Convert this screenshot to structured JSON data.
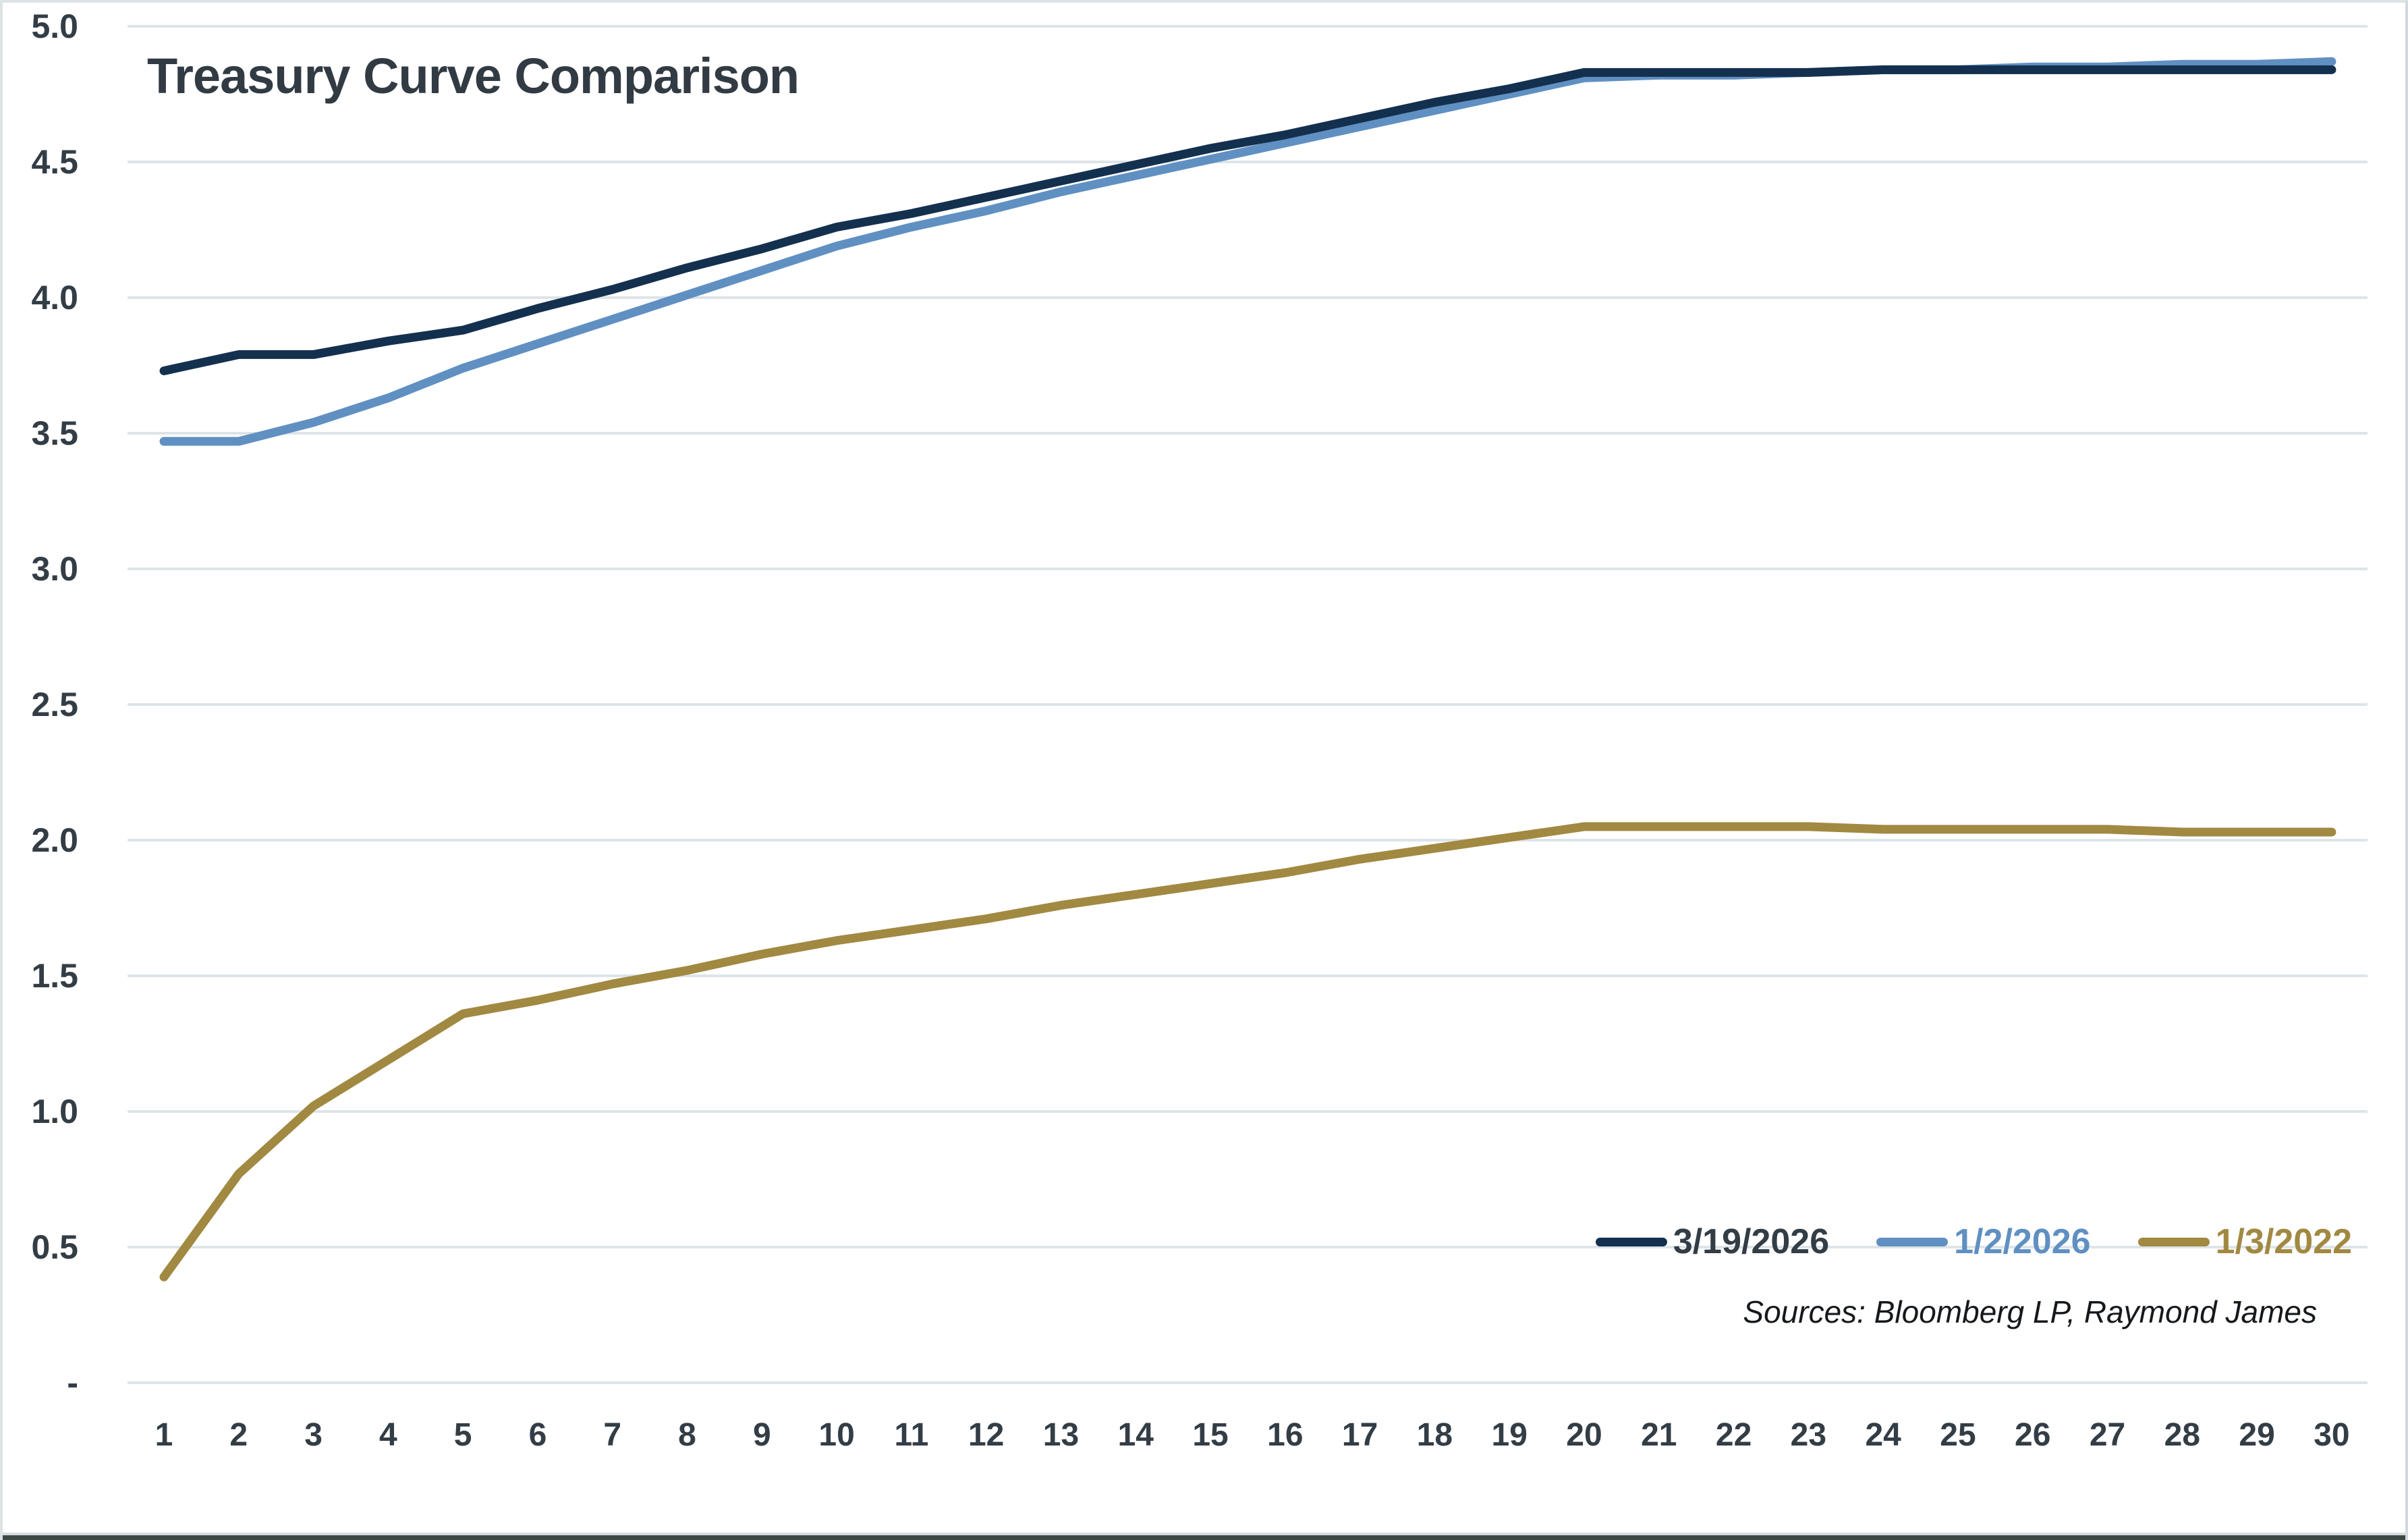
{
  "title": "Treasury Curve Comparison",
  "source_note": "Sources: Bloomberg LP, Raymond James",
  "colors": {
    "navy": "#14304f",
    "blue": "#6090c2",
    "gold": "#a18942",
    "grid": "#dee4e8",
    "tick_text": "#333d46",
    "title_text": "#323b44"
  },
  "legend": {
    "items": [
      {
        "label": "3/19/2026",
        "dash_color": "#14304f",
        "label_color": "#333d46"
      },
      {
        "label": "1/2/2026",
        "dash_color": "#6090c2",
        "label_color": "#6090c2"
      },
      {
        "label": "1/3/2022",
        "dash_color": "#a18942",
        "label_color": "#a18942"
      }
    ]
  },
  "chart_data": {
    "type": "line",
    "title": "Treasury Curve Comparison",
    "xlabel": "",
    "ylabel": "",
    "x": [
      1,
      2,
      3,
      4,
      5,
      6,
      7,
      8,
      9,
      10,
      11,
      12,
      13,
      14,
      15,
      16,
      17,
      18,
      19,
      20,
      21,
      22,
      23,
      24,
      25,
      26,
      27,
      28,
      29,
      30
    ],
    "series": [
      {
        "name": "3/19/2026",
        "color": "#14304f",
        "values": [
          3.73,
          3.79,
          3.79,
          3.84,
          3.88,
          3.96,
          4.03,
          4.11,
          4.18,
          4.26,
          4.31,
          4.37,
          4.43,
          4.49,
          4.55,
          4.6,
          4.66,
          4.72,
          4.77,
          4.83,
          4.83,
          4.83,
          4.83,
          4.84,
          4.84,
          4.84,
          4.84,
          4.84,
          4.84,
          4.84
        ]
      },
      {
        "name": "1/2/2026",
        "color": "#6090c2",
        "values": [
          3.47,
          3.47,
          3.54,
          3.63,
          3.74,
          3.83,
          3.92,
          4.01,
          4.1,
          4.19,
          4.26,
          4.32,
          4.39,
          4.45,
          4.51,
          4.57,
          4.63,
          4.69,
          4.75,
          4.81,
          4.82,
          4.82,
          4.83,
          4.84,
          4.84,
          4.85,
          4.85,
          4.86,
          4.86,
          4.87
        ]
      },
      {
        "name": "1/3/2022",
        "color": "#a18942",
        "values": [
          0.39,
          0.77,
          1.02,
          1.19,
          1.36,
          1.41,
          1.47,
          1.52,
          1.58,
          1.63,
          1.67,
          1.71,
          1.76,
          1.8,
          1.84,
          1.88,
          1.93,
          1.97,
          2.01,
          2.05,
          2.05,
          2.05,
          2.05,
          2.04,
          2.04,
          2.04,
          2.04,
          2.03,
          2.03,
          2.03
        ]
      }
    ],
    "ylim": [
      0,
      5
    ],
    "ytick_step": 0.5,
    "ytick_labels": [
      "-",
      "0.5",
      "1.0",
      "1.5",
      "2.0",
      "2.5",
      "3.0",
      "3.5",
      "4.0",
      "4.5",
      "5.0"
    ],
    "xtick_labels": [
      "1",
      "2",
      "3",
      "4",
      "5",
      "6",
      "7",
      "8",
      "9",
      "10",
      "11",
      "12",
      "13",
      "14",
      "15",
      "16",
      "17",
      "18",
      "19",
      "20",
      "21",
      "22",
      "23",
      "24",
      "25",
      "26",
      "27",
      "28",
      "29",
      "30"
    ],
    "grid": "horizontal",
    "legend_position": "inside-bottom-right",
    "line_width": 13
  }
}
